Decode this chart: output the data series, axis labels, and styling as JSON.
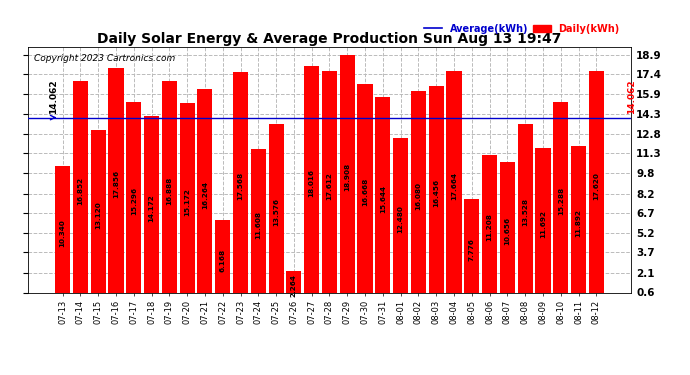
{
  "title": "Daily Solar Energy & Average Production Sun Aug 13 19:47",
  "copyright": "Copyright 2023 Cartronics.com",
  "categories": [
    "07-13",
    "07-14",
    "07-15",
    "07-16",
    "07-17",
    "07-18",
    "07-19",
    "07-20",
    "07-21",
    "07-22",
    "07-23",
    "07-24",
    "07-25",
    "07-26",
    "07-27",
    "07-28",
    "07-29",
    "07-30",
    "07-31",
    "08-01",
    "08-02",
    "08-03",
    "08-04",
    "08-05",
    "08-06",
    "08-07",
    "08-08",
    "08-09",
    "08-10",
    "08-11",
    "08-12"
  ],
  "values": [
    10.34,
    16.852,
    13.12,
    17.856,
    15.296,
    14.172,
    16.888,
    15.172,
    16.264,
    6.168,
    17.568,
    11.608,
    13.576,
    2.264,
    18.016,
    17.612,
    18.908,
    16.668,
    15.644,
    12.48,
    16.08,
    16.456,
    17.664,
    7.776,
    11.208,
    10.656,
    13.528,
    11.692,
    15.288,
    11.892,
    17.62
  ],
  "average": 14.062,
  "bar_color": "#ff0000",
  "average_line_color": "#0000cd",
  "background_color": "#ffffff",
  "grid_color": "#bbbbbb",
  "yticks": [
    0.6,
    2.1,
    3.7,
    5.2,
    6.7,
    8.2,
    9.8,
    11.3,
    12.8,
    14.3,
    15.9,
    17.4,
    18.9
  ],
  "legend_average_color": "#0000cd",
  "legend_daily_color": "#ff0000",
  "ymin": 0.6,
  "ymax": 19.5
}
